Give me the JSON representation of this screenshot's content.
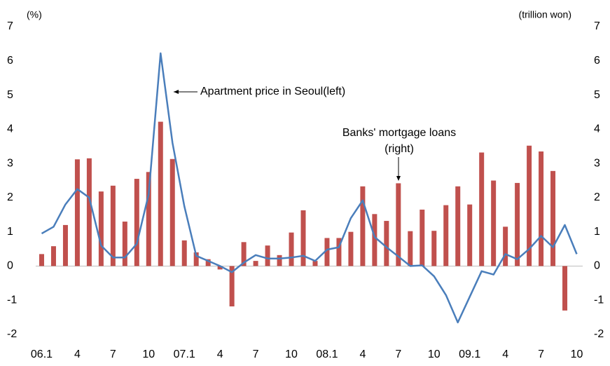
{
  "chart_data": {
    "type": "bar-line",
    "left_unit": "(%)",
    "right_unit": "(trillion won)",
    "annotations": [
      "Apartment price in Seoul(left)",
      "Banks' mortgage loans",
      "(right)"
    ],
    "categories": [
      "06.1",
      null,
      null,
      "4",
      null,
      null,
      "7",
      null,
      null,
      "10",
      null,
      null,
      "07.1",
      null,
      null,
      "4",
      null,
      null,
      "7",
      null,
      null,
      "10",
      null,
      null,
      "08.1",
      null,
      null,
      "4",
      null,
      null,
      "7",
      null,
      null,
      "10",
      null,
      null,
      "09.1",
      null,
      null,
      "4",
      null,
      null,
      "7",
      null,
      null,
      "10"
    ],
    "series": [
      {
        "type": "bar",
        "axis": "y2",
        "color": "#c0504d",
        "values": [
          0.35,
          0.58,
          1.2,
          3.12,
          3.15,
          2.18,
          2.35,
          1.3,
          2.55,
          2.75,
          4.22,
          3.13,
          0.75,
          0.4,
          0.2,
          -0.1,
          -1.18,
          0.7,
          0.15,
          0.6,
          0.32,
          0.98,
          1.63,
          0.15,
          0.82,
          0.82,
          1.0,
          2.33,
          1.52,
          1.32,
          2.42,
          1.02,
          1.65,
          1.03,
          1.78,
          2.33,
          1.8,
          3.32,
          2.5,
          1.15,
          2.43,
          3.52,
          3.35,
          2.78,
          -1.3,
          null
        ]
      },
      {
        "type": "line",
        "axis": "y",
        "color": "#4a7ebb",
        "values": [
          0.95,
          1.15,
          1.8,
          2.25,
          2.0,
          0.6,
          0.25,
          0.25,
          0.65,
          2.1,
          6.22,
          3.6,
          1.75,
          0.3,
          0.15,
          0.0,
          -0.18,
          0.1,
          0.32,
          0.22,
          0.22,
          0.25,
          0.3,
          0.15,
          0.48,
          0.55,
          1.4,
          1.92,
          0.85,
          0.55,
          0.28,
          0.0,
          0.02,
          -0.3,
          -0.85,
          -1.65,
          -0.9,
          -0.15,
          -0.25,
          0.35,
          0.2,
          0.5,
          0.88,
          0.55,
          1.2,
          0.35
        ]
      }
    ],
    "ylim": [
      -2,
      7
    ],
    "yticks": [
      -2,
      -1,
      0,
      1,
      2,
      3,
      4,
      5,
      6,
      7
    ],
    "y2lim": [
      -2,
      7
    ],
    "y2ticks": [
      -2,
      -1,
      0,
      1,
      2,
      3,
      4,
      5,
      6,
      7
    ]
  }
}
